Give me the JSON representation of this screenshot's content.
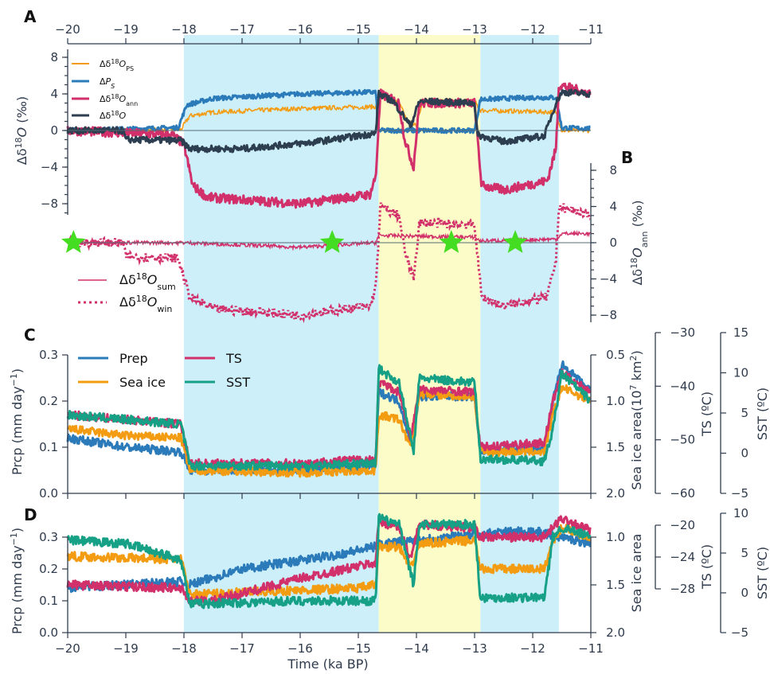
{
  "colors": {
    "blue_band": "#cdeffa",
    "yellow_band": "#fcfcc8",
    "orange": "#f39c12",
    "blue": "#2b7bba",
    "magenta": "#d1306a",
    "dark": "#2c3e50",
    "teal": "#16a085",
    "green_star": "#44dd22",
    "axis": "#2f3b4c"
  },
  "figure": {
    "x_label": "Time (ka BP)",
    "x_ticks": [
      "−20",
      "−19",
      "−18",
      "−17",
      "−16",
      "−15",
      "−14",
      "−13",
      "−12",
      "−11"
    ]
  },
  "panel_a": {
    "label": "A",
    "y_ticks": [
      "8",
      "4",
      "0",
      "−4",
      "−8"
    ],
    "legend": [
      "Δδ¹⁸O_PS",
      "ΔP_S",
      "Δδ¹⁸O_ann",
      "Δδ¹⁸O"
    ]
  },
  "panel_b": {
    "label": "B",
    "y_ticks": [
      "8",
      "4",
      "0",
      "−4",
      "−8"
    ],
    "legend": [
      "Δδ¹⁸O_sum",
      "Δδ¹⁸O_win"
    ]
  },
  "panel_c": {
    "label": "C",
    "left_ticks": [
      "0.3",
      "0.2",
      "0.1",
      "0.0"
    ],
    "seaice_ticks": [
      "0.5",
      "1.0",
      "1.5",
      "2.0"
    ],
    "ts_ticks": [
      "−30",
      "−40",
      "−50",
      "−60"
    ],
    "sst_ticks": [
      "15",
      "10",
      "5",
      "0",
      "−5"
    ],
    "legend": [
      "Prep",
      "TS",
      "Sea ice",
      "SST"
    ]
  },
  "panel_d": {
    "label": "D",
    "left_ticks": [
      "0.3",
      "0.2",
      "0.1",
      "0.0"
    ],
    "seaice_ticks": [
      "1.0",
      "1.5",
      "2.0"
    ],
    "ts_ticks": [
      "−20",
      "−24",
      "−28"
    ],
    "sst_ticks": [
      "10",
      "5",
      "0",
      "−5"
    ]
  },
  "chart_data": [
    {
      "type": "line",
      "panel": "A",
      "xlabel": "",
      "ylabel": "Δδ18O (‰)",
      "xlim": [
        -20,
        -11
      ],
      "ylim": [
        -10,
        9
      ],
      "shading": [
        {
          "from": -18.0,
          "to": -14.65,
          "color": "blue"
        },
        {
          "from": -14.65,
          "to": -12.9,
          "color": "yellow"
        },
        {
          "from": -12.9,
          "to": -11.55,
          "color": "blue"
        }
      ],
      "series": [
        {
          "name": "Δδ18O_PS",
          "color": "orange",
          "points": [
            [
              -20,
              0
            ],
            [
              -18.05,
              0.1
            ],
            [
              -17.9,
              1.6
            ],
            [
              -17.5,
              2
            ],
            [
              -16,
              2.4
            ],
            [
              -14.7,
              2.6
            ],
            [
              -14.65,
              3.8
            ],
            [
              -14.3,
              3
            ],
            [
              -14.15,
              1
            ],
            [
              -14,
              0.5
            ],
            [
              -13.9,
              3.2
            ],
            [
              -13,
              3.2
            ],
            [
              -12.9,
              2.2
            ],
            [
              -11.6,
              2
            ],
            [
              -11.5,
              0
            ],
            [
              -11,
              0
            ]
          ]
        },
        {
          "name": "ΔP_S",
          "color": "blue",
          "points": [
            [
              -20,
              0
            ],
            [
              -18.1,
              0.3
            ],
            [
              -17.95,
              2.8
            ],
            [
              -17.5,
              3.5
            ],
            [
              -16,
              4
            ],
            [
              -14.7,
              4.2
            ],
            [
              -14.65,
              0
            ],
            [
              -13,
              0
            ],
            [
              -12.9,
              3.4
            ],
            [
              -12,
              3.6
            ],
            [
              -11.6,
              3.6
            ],
            [
              -11.5,
              0.3
            ],
            [
              -11,
              0.2
            ]
          ]
        },
        {
          "name": "Δδ18O_ann",
          "color": "magenta",
          "points": [
            [
              -20,
              0
            ],
            [
              -18.2,
              -0.5
            ],
            [
              -18,
              -1.5
            ],
            [
              -17.85,
              -6
            ],
            [
              -17.6,
              -7.3
            ],
            [
              -16,
              -8
            ],
            [
              -14.8,
              -7
            ],
            [
              -14.7,
              -5
            ],
            [
              -14.62,
              4
            ],
            [
              -14.3,
              3
            ],
            [
              -14.2,
              -1
            ],
            [
              -14.05,
              -4
            ],
            [
              -13.95,
              3
            ],
            [
              -13,
              3
            ],
            [
              -12.88,
              -6
            ],
            [
              -12.5,
              -6.5
            ],
            [
              -11.75,
              -5.5
            ],
            [
              -11.6,
              -2
            ],
            [
              -11.55,
              5
            ],
            [
              -11,
              4
            ]
          ]
        },
        {
          "name": "Δδ18O",
          "color": "dark",
          "points": [
            [
              -20,
              0
            ],
            [
              -19.05,
              0
            ],
            [
              -19,
              -1
            ],
            [
              -18.05,
              -1.1
            ],
            [
              -17.9,
              -2
            ],
            [
              -17,
              -2
            ],
            [
              -15.8,
              -1.3
            ],
            [
              -14.9,
              -0.5
            ],
            [
              -14.7,
              -0.3
            ],
            [
              -14.65,
              4
            ],
            [
              -14.4,
              3.2
            ],
            [
              -14.1,
              0.5
            ],
            [
              -13.95,
              3.2
            ],
            [
              -13,
              3
            ],
            [
              -12.95,
              -0.5
            ],
            [
              -12.5,
              -1.2
            ],
            [
              -11.8,
              -0.6
            ],
            [
              -11.6,
              3
            ],
            [
              -11.5,
              4.2
            ],
            [
              -11,
              4
            ]
          ]
        }
      ]
    },
    {
      "type": "line",
      "panel": "B",
      "ylabel": "Δδ18O_ann (‰)",
      "xlim": [
        -20,
        -11
      ],
      "ylim": [
        -9,
        9
      ],
      "markers": {
        "shape": "star",
        "color": "green_star",
        "x": [
          -19.9,
          -15.45,
          -13.4,
          -12.3
        ],
        "y": [
          0,
          0,
          0,
          0
        ]
      },
      "series": [
        {
          "name": "Δδ18O_sum",
          "color": "magenta",
          "style": "solid",
          "points": [
            [
              -20,
              0
            ],
            [
              -18,
              0
            ],
            [
              -16,
              -0.5
            ],
            [
              -14.7,
              0
            ],
            [
              -14.65,
              0.8
            ],
            [
              -13,
              0.6
            ],
            [
              -12.9,
              0.2
            ],
            [
              -11.6,
              0.4
            ],
            [
              -11.5,
              1
            ],
            [
              -11,
              1
            ]
          ]
        },
        {
          "name": "Δδ18O_win",
          "color": "magenta",
          "style": "dotted",
          "points": [
            [
              -20,
              0
            ],
            [
              -19.05,
              0
            ],
            [
              -19,
              -1.5
            ],
            [
              -18.1,
              -1.7
            ],
            [
              -17.9,
              -6
            ],
            [
              -17.5,
              -7.3
            ],
            [
              -16,
              -8
            ],
            [
              -14.8,
              -7
            ],
            [
              -14.7,
              -5
            ],
            [
              -14.62,
              4
            ],
            [
              -14.3,
              3
            ],
            [
              -14.2,
              -1
            ],
            [
              -14.05,
              -4
            ],
            [
              -13.95,
              2.2
            ],
            [
              -13,
              2
            ],
            [
              -12.88,
              -6
            ],
            [
              -12.5,
              -7
            ],
            [
              -11.75,
              -6
            ],
            [
              -11.6,
              -2
            ],
            [
              -11.55,
              4
            ],
            [
              -11,
              3
            ]
          ]
        }
      ]
    },
    {
      "type": "line",
      "panel": "C",
      "ylabel": "Prcp (mm day⁻¹)",
      "right_labels": [
        "Sea ice area(10⁷ km²)",
        "TS (ºC)",
        "SST (ºC)"
      ],
      "xlim": [
        -20,
        -11
      ],
      "ylim": [
        0,
        0.3
      ],
      "series": [
        {
          "name": "Prep",
          "color": "blue",
          "points": [
            [
              -20,
              0.12
            ],
            [
              -19,
              0.1
            ],
            [
              -18.05,
              0.09
            ],
            [
              -17.9,
              0.05
            ],
            [
              -16,
              0.05
            ],
            [
              -14.7,
              0.06
            ],
            [
              -14.65,
              0.22
            ],
            [
              -14.3,
              0.2
            ],
            [
              -14.1,
              0.11
            ],
            [
              -13.95,
              0.21
            ],
            [
              -13,
              0.21
            ],
            [
              -12.9,
              0.09
            ],
            [
              -11.8,
              0.1
            ],
            [
              -11.65,
              0.2
            ],
            [
              -11.5,
              0.28
            ],
            [
              -11,
              0.22
            ]
          ]
        },
        {
          "name": "Sea ice",
          "color": "orange",
          "points": [
            [
              -20,
              0.14
            ],
            [
              -19,
              0.125
            ],
            [
              -18.05,
              0.12
            ],
            [
              -17.9,
              0.05
            ],
            [
              -16,
              0.045
            ],
            [
              -14.7,
              0.05
            ],
            [
              -14.65,
              0.17
            ],
            [
              -14.3,
              0.16
            ],
            [
              -14.1,
              0.1
            ],
            [
              -13.95,
              0.215
            ],
            [
              -13,
              0.21
            ],
            [
              -12.9,
              0.09
            ],
            [
              -11.8,
              0.09
            ],
            [
              -11.65,
              0.17
            ],
            [
              -11.5,
              0.23
            ],
            [
              -11,
              0.2
            ]
          ]
        },
        {
          "name": "TS",
          "color": "magenta",
          "points": [
            [
              -20,
              0.17
            ],
            [
              -19,
              0.16
            ],
            [
              -18.05,
              0.15
            ],
            [
              -17.9,
              0.065
            ],
            [
              -16,
              0.065
            ],
            [
              -14.7,
              0.075
            ],
            [
              -14.65,
              0.24
            ],
            [
              -14.3,
              0.22
            ],
            [
              -14.1,
              0.12
            ],
            [
              -13.95,
              0.225
            ],
            [
              -13,
              0.22
            ],
            [
              -12.9,
              0.1
            ],
            [
              -11.8,
              0.11
            ],
            [
              -11.65,
              0.2
            ],
            [
              -11.5,
              0.26
            ],
            [
              -11,
              0.22
            ]
          ]
        },
        {
          "name": "SST",
          "color": "teal",
          "points": [
            [
              -20,
              0.17
            ],
            [
              -19,
              0.16
            ],
            [
              -18.05,
              0.15
            ],
            [
              -17.9,
              0.06
            ],
            [
              -16,
              0.06
            ],
            [
              -14.7,
              0.065
            ],
            [
              -14.65,
              0.27
            ],
            [
              -14.3,
              0.24
            ],
            [
              -14.05,
              0.09
            ],
            [
              -13.95,
              0.25
            ],
            [
              -13,
              0.24
            ],
            [
              -12.9,
              0.075
            ],
            [
              -11.8,
              0.07
            ],
            [
              -11.65,
              0.14
            ],
            [
              -11.5,
              0.26
            ],
            [
              -11,
              0.2
            ]
          ]
        }
      ]
    },
    {
      "type": "line",
      "panel": "D",
      "ylabel": "Prcp (mm day⁻¹)",
      "right_labels": [
        "Sea ice area",
        "TS (ºC)",
        "SST (ºC)"
      ],
      "xlabel": "Time (ka BP)",
      "xlim": [
        -20,
        -11
      ],
      "ylim": [
        0,
        0.33
      ],
      "series": [
        {
          "name": "Prep",
          "color": "blue",
          "points": [
            [
              -20,
              0.14
            ],
            [
              -18.05,
              0.16
            ],
            [
              -17.9,
              0.15
            ],
            [
              -17,
              0.2
            ],
            [
              -15.5,
              0.24
            ],
            [
              -14.7,
              0.27
            ],
            [
              -14.6,
              0.28
            ],
            [
              -13,
              0.31
            ],
            [
              -12,
              0.32
            ],
            [
              -11.5,
              0.3
            ],
            [
              -11,
              0.28
            ]
          ]
        },
        {
          "name": "Sea ice",
          "color": "orange",
          "points": [
            [
              -20,
              0.24
            ],
            [
              -18.05,
              0.23
            ],
            [
              -17.9,
              0.12
            ],
            [
              -15,
              0.14
            ],
            [
              -14.7,
              0.15
            ],
            [
              -14.65,
              0.27
            ],
            [
              -14.3,
              0.27
            ],
            [
              -14.1,
              0.2
            ],
            [
              -13.95,
              0.28
            ],
            [
              -13,
              0.29
            ],
            [
              -12.9,
              0.2
            ],
            [
              -11.8,
              0.2
            ],
            [
              -11.65,
              0.29
            ],
            [
              -11.5,
              0.33
            ],
            [
              -11,
              0.3
            ]
          ]
        },
        {
          "name": "TS",
          "color": "magenta",
          "points": [
            [
              -20,
              0.15
            ],
            [
              -18.05,
              0.14
            ],
            [
              -17.9,
              0.1
            ],
            [
              -17.5,
              0.1
            ],
            [
              -16,
              0.17
            ],
            [
              -14.7,
              0.22
            ],
            [
              -14.65,
              0.35
            ],
            [
              -14.3,
              0.33
            ],
            [
              -14.1,
              0.23
            ],
            [
              -13.95,
              0.34
            ],
            [
              -13,
              0.33
            ],
            [
              -12.9,
              0.3
            ],
            [
              -11.8,
              0.3
            ],
            [
              -11.65,
              0.33
            ],
            [
              -11.5,
              0.36
            ],
            [
              -11,
              0.32
            ]
          ]
        },
        {
          "name": "SST",
          "color": "teal",
          "points": [
            [
              -20,
              0.29
            ],
            [
              -19,
              0.28
            ],
            [
              -18.05,
              0.23
            ],
            [
              -17.9,
              0.09
            ],
            [
              -16,
              0.1
            ],
            [
              -14.7,
              0.1
            ],
            [
              -14.65,
              0.36
            ],
            [
              -14.3,
              0.34
            ],
            [
              -14.05,
              0.15
            ],
            [
              -13.95,
              0.34
            ],
            [
              -13,
              0.34
            ],
            [
              -12.9,
              0.11
            ],
            [
              -11.8,
              0.11
            ],
            [
              -11.65,
              0.3
            ],
            [
              -11.5,
              0.33
            ],
            [
              -11,
              0.3
            ]
          ]
        }
      ]
    }
  ]
}
